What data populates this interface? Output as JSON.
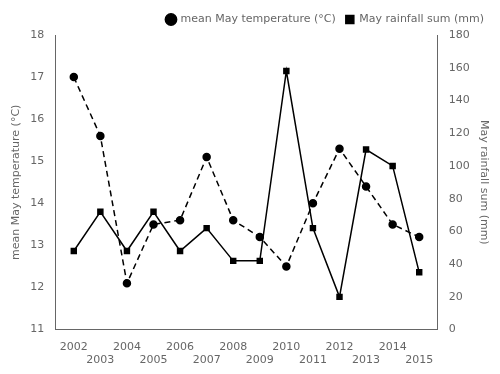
{
  "chart_data": {
    "type": "line",
    "x": [
      2002,
      2003,
      2004,
      2005,
      2006,
      2007,
      2008,
      2009,
      2010,
      2011,
      2012,
      2013,
      2014,
      2015
    ],
    "xlim": [
      2001.3,
      2015.7
    ],
    "xticks": [
      2002,
      2003,
      2004,
      2005,
      2006,
      2007,
      2008,
      2009,
      2010,
      2011,
      2012,
      2013,
      2014,
      2015
    ],
    "ylabel": "mean May temperature (°C)",
    "ylim": [
      11,
      18
    ],
    "yticks": [
      11,
      12,
      13,
      14,
      15,
      16,
      17,
      18
    ],
    "y2label": "May rainfall sum (mm)",
    "y2lim": [
      0,
      180
    ],
    "y2ticks": [
      0,
      20,
      40,
      60,
      80,
      100,
      120,
      140,
      160,
      180
    ],
    "series": [
      {
        "name": "mean May temperature (°C)",
        "color": "black",
        "marker": "circle",
        "line_style": "dashed",
        "values": [
          17.0,
          15.6,
          12.1,
          13.5,
          13.6,
          15.1,
          13.6,
          13.2,
          12.5,
          14.0,
          15.3,
          14.4,
          13.5,
          13.2
        ]
      },
      {
        "name": "May rainfall sum (mm)",
        "color": "black",
        "marker": "square",
        "line_style": "solid",
        "axis": "y2",
        "values": [
          48,
          72,
          48,
          72,
          48,
          62,
          42,
          42,
          158,
          62,
          20,
          110,
          100,
          35
        ]
      }
    ],
    "legend": "upper right",
    "grid": false
  }
}
